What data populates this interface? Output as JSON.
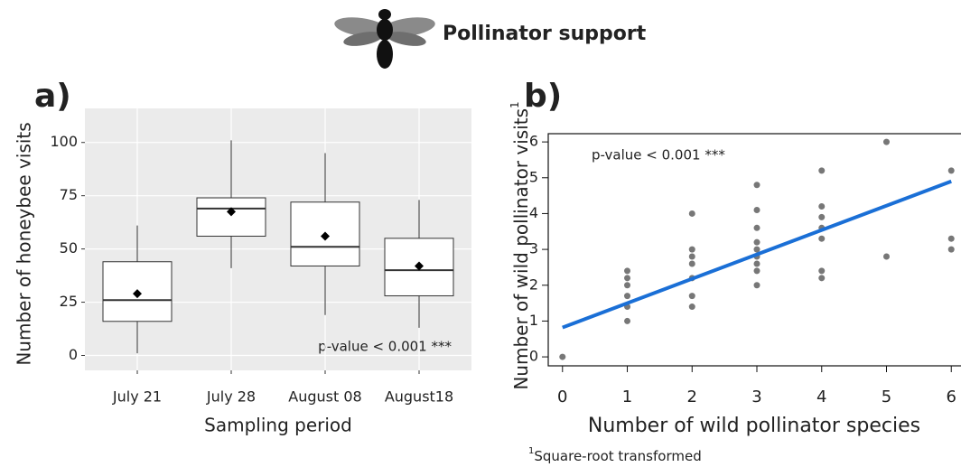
{
  "header": {
    "title": "Pollinator support"
  },
  "chart_data": [
    {
      "type": "box",
      "panel_label": "a)",
      "x_label": "Sampling period",
      "y_label": "Number of honeybee visits",
      "annotation": "p-value < 0.001 ***",
      "categories": [
        "July 21",
        "July 28",
        "August 08",
        "August18"
      ],
      "boxes": [
        {
          "low": 1,
          "q1": 16,
          "median": 26,
          "q3": 44,
          "high": 61,
          "mean": 29
        },
        {
          "low": 41,
          "q1": 56,
          "median": 69,
          "q3": 74,
          "high": 101,
          "mean": 67.5
        },
        {
          "low": 19,
          "q1": 42,
          "median": 51,
          "q3": 72,
          "high": 95,
          "mean": 56
        },
        {
          "low": 13,
          "q1": 28,
          "median": 40,
          "q3": 55,
          "high": 73,
          "mean": 42
        }
      ],
      "ylim": [
        -7,
        116
      ],
      "yticks": [
        0,
        25,
        50,
        75,
        100
      ],
      "grid": true,
      "color": "#ffffff",
      "mean_color": "#000000"
    },
    {
      "type": "scatter",
      "panel_label": "b)",
      "x_label": "Number of wild pollinator species",
      "y_label": "Number of wild pollinator visits",
      "y_label_superscript": "1",
      "footnote_marker": "1",
      "footnote": "Square-root transformed",
      "annotation": "p-value < 0.001 ***",
      "x": [
        0,
        1,
        1,
        1,
        1,
        1,
        1,
        2,
        2,
        2,
        2,
        2,
        2,
        2,
        3,
        3,
        3,
        3,
        3,
        3,
        3,
        3,
        3,
        4,
        4,
        4,
        4,
        4,
        4,
        4,
        5,
        5,
        6,
        6,
        6
      ],
      "values": [
        0,
        1,
        1.4,
        1.7,
        2,
        2.2,
        2.4,
        1.4,
        1.7,
        2.2,
        2.6,
        2.8,
        3,
        4,
        2,
        2.4,
        2.6,
        2.8,
        3,
        3.2,
        3.6,
        4.1,
        4.8,
        2.2,
        2.4,
        3.3,
        3.6,
        3.9,
        4.2,
        5.2,
        2.8,
        6,
        3,
        3.3,
        5.2
      ],
      "color": "#777777",
      "fit": {
        "x": [
          0,
          6
        ],
        "values": [
          0.82,
          4.9
        ],
        "color": "#1a6fd6"
      },
      "xlim": [
        -0.22,
        6.15
      ],
      "ylim": [
        -0.25,
        6.23
      ],
      "xticks": [
        0,
        1,
        2,
        3,
        4,
        5,
        6
      ],
      "yticks": [
        0,
        1,
        2,
        3,
        4,
        5,
        6
      ]
    }
  ]
}
